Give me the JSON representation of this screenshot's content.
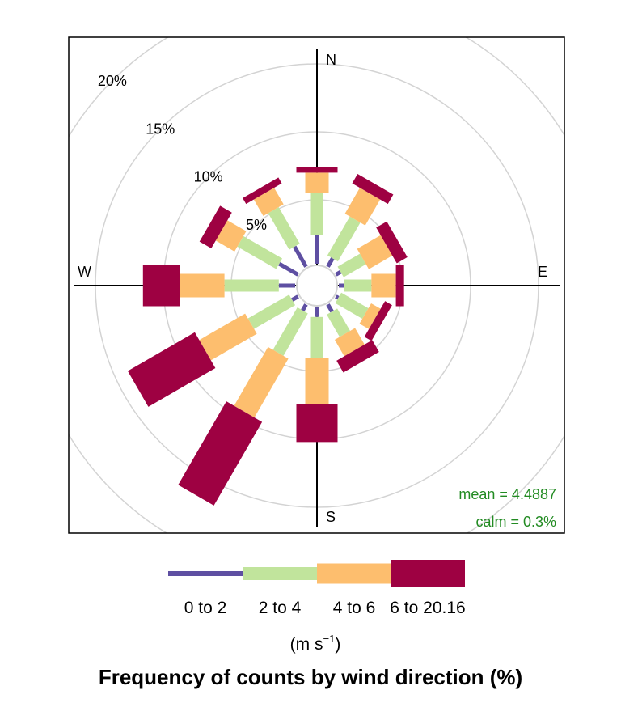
{
  "chart_data": {
    "type": "windrose",
    "title": "Frequency of counts by wind direction (%)",
    "directions": [
      0,
      30,
      60,
      90,
      120,
      150,
      180,
      210,
      240,
      270,
      300,
      330
    ],
    "compass_labels": {
      "N": "N",
      "E": "E",
      "S": "S",
      "W": "W"
    },
    "ring_labels": [
      {
        "value": 5,
        "label": "5%"
      },
      {
        "value": 10,
        "label": "10%"
      },
      {
        "value": 15,
        "label": "15%"
      },
      {
        "value": 20,
        "label": "20%"
      }
    ],
    "series": [
      {
        "name": "0 to 2",
        "color": "#5e4fa2",
        "values": [
          2.4,
          1.0,
          0.7,
          0.7,
          0.5,
          0.9,
          1.0,
          0.8,
          0.8,
          1.5,
          1.9,
          2.0
        ]
      },
      {
        "name": "2 to 4",
        "color": "#c1e49c",
        "values": [
          3.1,
          3.3,
          1.9,
          2.0,
          2.3,
          1.9,
          3.0,
          3.6,
          3.5,
          4.0,
          3.3,
          3.1
        ]
      },
      {
        "name": "4 to 6",
        "color": "#fdbe6e",
        "values": [
          1.5,
          2.2,
          2.0,
          1.8,
          0.8,
          1.4,
          3.4,
          5.0,
          3.9,
          3.3,
          1.6,
          1.4
        ]
      },
      {
        "name": "6 to 20.16",
        "color": "#9e0142",
        "values": [
          0.4,
          0.8,
          0.9,
          0.6,
          0.6,
          1.0,
          2.8,
          7.1,
          5.7,
          2.7,
          1.0,
          0.5
        ]
      }
    ],
    "units": "(m s⁻¹)",
    "mean_label": "mean = 4.4887",
    "calm_label": "calm = 0.3%",
    "annotation_color": "#228b22"
  }
}
